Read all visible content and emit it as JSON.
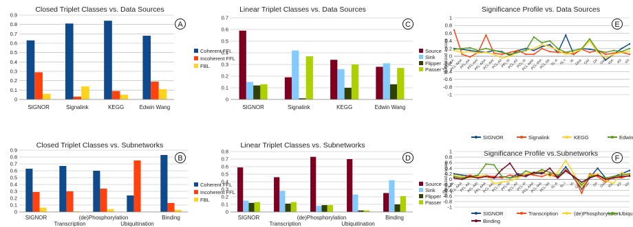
{
  "chart_data": [
    {
      "id": "A",
      "type": "bar",
      "title": "Closed Triplet Classes vs. Data Sources",
      "categories": [
        "SIGNOR",
        "Signalink",
        "KEGG",
        "Edwin Wang"
      ],
      "category_row": [
        0,
        0,
        0,
        0
      ],
      "ylim": [
        0,
        0.9
      ],
      "yticks": [
        0,
        0.1,
        0.2,
        0.3,
        0.4,
        0.5,
        0.6,
        0.7,
        0.8,
        0.9
      ],
      "grid": true,
      "legend": "right",
      "series": [
        {
          "name": "Coherent FFL",
          "color": "#0e4a8c",
          "values": [
            0.63,
            0.81,
            0.84,
            0.68
          ]
        },
        {
          "name": "Incoherent FFL",
          "color": "#ff420e",
          "values": [
            0.29,
            0.03,
            0.09,
            0.19
          ]
        },
        {
          "name": "FBL",
          "color": "#ffd320",
          "values": [
            0.06,
            0.14,
            0.05,
            0.11
          ]
        }
      ]
    },
    {
      "id": "C",
      "type": "bar",
      "title": "Linear Triplet Classes vs. Data Sources",
      "categories": [
        "SIGNOR",
        "Signalink",
        "KEGG",
        "Edwin Wang"
      ],
      "category_row": [
        0,
        0,
        0,
        0
      ],
      "ylim": [
        0,
        0.7
      ],
      "yticks": [
        0,
        0.1,
        0.2,
        0.3,
        0.4,
        0.5,
        0.6,
        0.7
      ],
      "grid": true,
      "legend": "right",
      "series": [
        {
          "name": "Source",
          "color": "#7e0021",
          "values": [
            0.59,
            0.19,
            0.34,
            0.28
          ]
        },
        {
          "name": "Sink",
          "color": "#83caff",
          "values": [
            0.15,
            0.42,
            0.26,
            0.31
          ]
        },
        {
          "name": "Flipper",
          "color": "#314004",
          "values": [
            0.12,
            0.01,
            0.1,
            0.13
          ]
        },
        {
          "name": "Passer",
          "color": "#aecf00",
          "values": [
            0.13,
            0.37,
            0.3,
            0.27
          ]
        }
      ]
    },
    {
      "id": "E",
      "type": "line",
      "title": "Significance Profile vs. Data Sources",
      "ylabel": "Normalized z-score",
      "ylim": [
        -1,
        1
      ],
      "yticks": [
        -1,
        -0.8,
        -0.6,
        -0.4,
        -0.2,
        0,
        0.2,
        0.4,
        0.6,
        0.8,
        1
      ],
      "x": [
        "PBL-AAA",
        "PCL-AAA",
        "PFL-AA",
        "PFL-AAI",
        "PFL-AAA",
        "PCL-AAI",
        "PCL-AII",
        "PFL-III",
        "PCL-AII",
        "PCL-III",
        "PCL-AAA",
        "PCL-IAA",
        "PCL-IIA",
        "SL-A",
        "SL-I",
        "IA",
        "OAA",
        "OAI",
        "OII",
        "OIA",
        "IOA",
        "IOI",
        "IOI"
      ],
      "grid": true,
      "legend": "bottom",
      "series": [
        {
          "name": "SIGNOR",
          "color": "#0e4a8c",
          "values": [
            0.2,
            0.18,
            0.15,
            0.12,
            0.1,
            0.15,
            0.12,
            0.02,
            0.15,
            0.2,
            0.15,
            0.25,
            0.3,
            0.1,
            0.55,
            0.05,
            0.2,
            0.18,
            0.15,
            -0.1,
            0.05,
            0.2,
            0.32
          ]
        },
        {
          "name": "Signalink",
          "color": "#ff420e",
          "values": [
            0.68,
            0.05,
            -0.02,
            0.1,
            0.55,
            0.08,
            0.05,
            0.1,
            0.15,
            0.05,
            0.05,
            0.2,
            0.12,
            0.1,
            0.1,
            0.05,
            0.18,
            0.1,
            0.15,
            0.05,
            0.08,
            0.1,
            0.05
          ]
        },
        {
          "name": "KEGG",
          "color": "#ffd320",
          "values": [
            0.15,
            0.1,
            0.12,
            0.08,
            0.1,
            0.05,
            -0.05,
            0.0,
            0.1,
            0.15,
            0.2,
            0.3,
            0.25,
            0.15,
            0.05,
            0.1,
            0.18,
            0.4,
            0.1,
            -0.05,
            0.05,
            0.1,
            0.12
          ]
        },
        {
          "name": "Edwin Wang",
          "color": "#579d1c",
          "values": [
            0.18,
            0.2,
            0.22,
            0.15,
            0.2,
            0.15,
            0.1,
            0.05,
            0.1,
            0.15,
            0.5,
            0.35,
            0.4,
            0.2,
            0.1,
            0.15,
            0.2,
            0.45,
            0.15,
            0.1,
            0.15,
            0.12,
            0.2
          ]
        }
      ]
    },
    {
      "id": "B",
      "type": "bar",
      "title": "Closed Triplet Classes vs. Subnetworks",
      "categories": [
        "SIGNOR",
        "Transcription",
        "(de)Phosphorylation",
        "Ubiquitination",
        "Binding"
      ],
      "category_row": [
        0,
        1,
        0,
        1,
        0
      ],
      "ylim": [
        0,
        0.9
      ],
      "yticks": [
        0,
        0.1,
        0.2,
        0.3,
        0.4,
        0.5,
        0.6,
        0.7,
        0.8,
        0.9
      ],
      "grid": true,
      "legend": "right",
      "series": [
        {
          "name": "Coherent FFL",
          "color": "#0e4a8c",
          "values": [
            0.63,
            0.67,
            0.6,
            0.24,
            0.83
          ]
        },
        {
          "name": "Incoherent FFL",
          "color": "#ff420e",
          "values": [
            0.29,
            0.3,
            0.34,
            0.75,
            0.13
          ]
        },
        {
          "name": "FBL",
          "color": "#ffd320",
          "values": [
            0.06,
            0.01,
            0.04,
            0.0,
            0.03
          ]
        }
      ]
    },
    {
      "id": "D",
      "type": "bar",
      "title": "Linear Triplet Classes vs. Subnetworks",
      "categories": [
        "SIGNOR",
        "Transcription",
        "(de)Phosphorylation",
        "Ubiquitination",
        "Binding"
      ],
      "category_row": [
        0,
        1,
        0,
        1,
        0
      ],
      "ylim": [
        0,
        0.8
      ],
      "yticks": [
        0,
        0.1,
        0.2,
        0.3,
        0.4,
        0.5,
        0.6,
        0.7,
        0.8
      ],
      "grid": true,
      "legend": "right",
      "series": [
        {
          "name": "Source",
          "color": "#7e0021",
          "values": [
            0.59,
            0.46,
            0.73,
            0.7,
            0.25
          ]
        },
        {
          "name": "Sink",
          "color": "#83caff",
          "values": [
            0.15,
            0.28,
            0.08,
            0.23,
            0.42
          ]
        },
        {
          "name": "Flipper",
          "color": "#314004",
          "values": [
            0.12,
            0.11,
            0.09,
            0.02,
            0.1
          ]
        },
        {
          "name": "Passer",
          "color": "#aecf00",
          "values": [
            0.13,
            0.13,
            0.09,
            0.02,
            0.21
          ]
        }
      ]
    },
    {
      "id": "F",
      "type": "line",
      "title": "Significance Profile vs.Subnetworks",
      "ylabel": "Normalized z-score",
      "ylim": [
        -1,
        1
      ],
      "yticks": [
        -1,
        -0.8,
        -0.6,
        -0.4,
        -0.2,
        0,
        0.2,
        0.4,
        0.6,
        0.8,
        1
      ],
      "x": [
        "PBL-AAA",
        "PCL-AAA",
        "PFL-AA",
        "PFL-AAI",
        "PFL-AAA",
        "PCL-AAI",
        "PCL-AII",
        "PFL-III",
        "PCL-AII",
        "PCL-III",
        "PCL-AAA",
        "PCL-IAA",
        "PCL-IIA",
        "SL-A",
        "SL-I",
        "IA",
        "OAA",
        "OAI",
        "OII",
        "OIA",
        "IOA",
        "IOI",
        "IOI"
      ],
      "grid": true,
      "legend": "bottom",
      "series": [
        {
          "name": "SIGNOR",
          "color": "#0e4a8c",
          "values": [
            0.2,
            0.15,
            0.12,
            0.1,
            0.15,
            0.05,
            0.1,
            0.05,
            0.2,
            0.15,
            0.2,
            0.25,
            0.15,
            0.1,
            0.45,
            0.05,
            -0.35,
            0.05,
            0.4,
            0.05,
            0.1,
            0.2,
            0.32
          ]
        },
        {
          "name": "Transcription",
          "color": "#ff420e",
          "values": [
            0.1,
            0.05,
            0.15,
            0.05,
            0.12,
            0.1,
            0.05,
            0.15,
            0.1,
            0.2,
            0.15,
            0.1,
            0.2,
            0.05,
            0.35,
            0.1,
            -0.5,
            0.2,
            0.1,
            -0.1,
            0.1,
            0.05,
            0.15
          ]
        },
        {
          "name": "(de)Phosphorylation",
          "color": "#ffd320",
          "values": [
            0.15,
            0.1,
            0.05,
            0.1,
            0.15,
            -0.15,
            -0.1,
            -0.05,
            0.05,
            0.2,
            0.25,
            0.3,
            0.1,
            0.25,
            0.68,
            0.2,
            -0.3,
            0.15,
            0.2,
            -0.05,
            -0.15,
            0.25,
            0.1
          ]
        },
        {
          "name": "Ubiquitination",
          "color": "#579d1c",
          "values": [
            0.1,
            0.05,
            0.1,
            0.15,
            0.55,
            0.52,
            0.1,
            0.05,
            0.1,
            0.3,
            0.2,
            0.35,
            0.25,
            0.15,
            0.3,
            0.1,
            -0.2,
            0.1,
            0.15,
            0.05,
            0.1,
            0.15,
            0.2
          ]
        },
        {
          "name": "Binding",
          "color": "#7e0021",
          "values": [
            0.05,
            0.0,
            0.1,
            0.05,
            0.1,
            0.05,
            0.35,
            0.58,
            0.15,
            0.1,
            0.25,
            0.2,
            0.4,
            0.05,
            0.3,
            0.1,
            -0.1,
            0.05,
            0.15,
            0.0,
            0.05,
            0.1,
            0.12
          ]
        }
      ]
    }
  ]
}
